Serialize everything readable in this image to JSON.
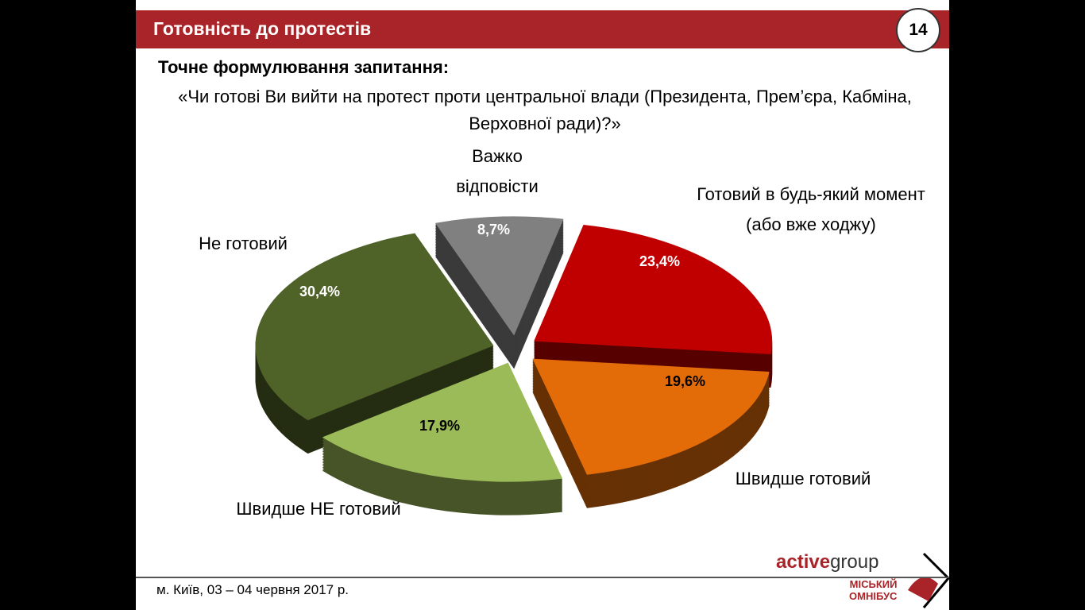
{
  "header": {
    "title": "Готовність до протестів",
    "page_number": "14",
    "accent": "#a82428"
  },
  "question": {
    "heading": "Точне формулювання запитання:",
    "text": "«Чи готові Ви вийти на протест проти центральної влади (Президента, Прем’єра, Кабміна, Верховної ради)?»"
  },
  "chart_data": {
    "type": "pie",
    "style": "3d-exploded",
    "categories": [
      "Готовий в будь-який момент (або вже ходжу)",
      "Швидше готовий",
      "Швидше НЕ готовий",
      "Не готовий",
      "Важко відповісти"
    ],
    "values": [
      23.4,
      19.6,
      17.9,
      30.4,
      8.7
    ],
    "value_labels": [
      "23,4%",
      "19,6%",
      "17,9%",
      "30,4%",
      "8,7%"
    ],
    "colors": [
      "#c00000",
      "#e36c09",
      "#9bbb59",
      "#4f6228",
      "#808080"
    ],
    "label_colors": [
      "#ffffff",
      "#000000",
      "#000000",
      "#ffffff",
      "#ffffff"
    ]
  },
  "footer": {
    "location_date": "м. Київ, 03 – 04 червня 2017 р.",
    "brand_bold": "active",
    "brand_rest": "group",
    "logo_line1": "МІСЬКИЙ",
    "logo_line2": "ОМНІБУС"
  }
}
